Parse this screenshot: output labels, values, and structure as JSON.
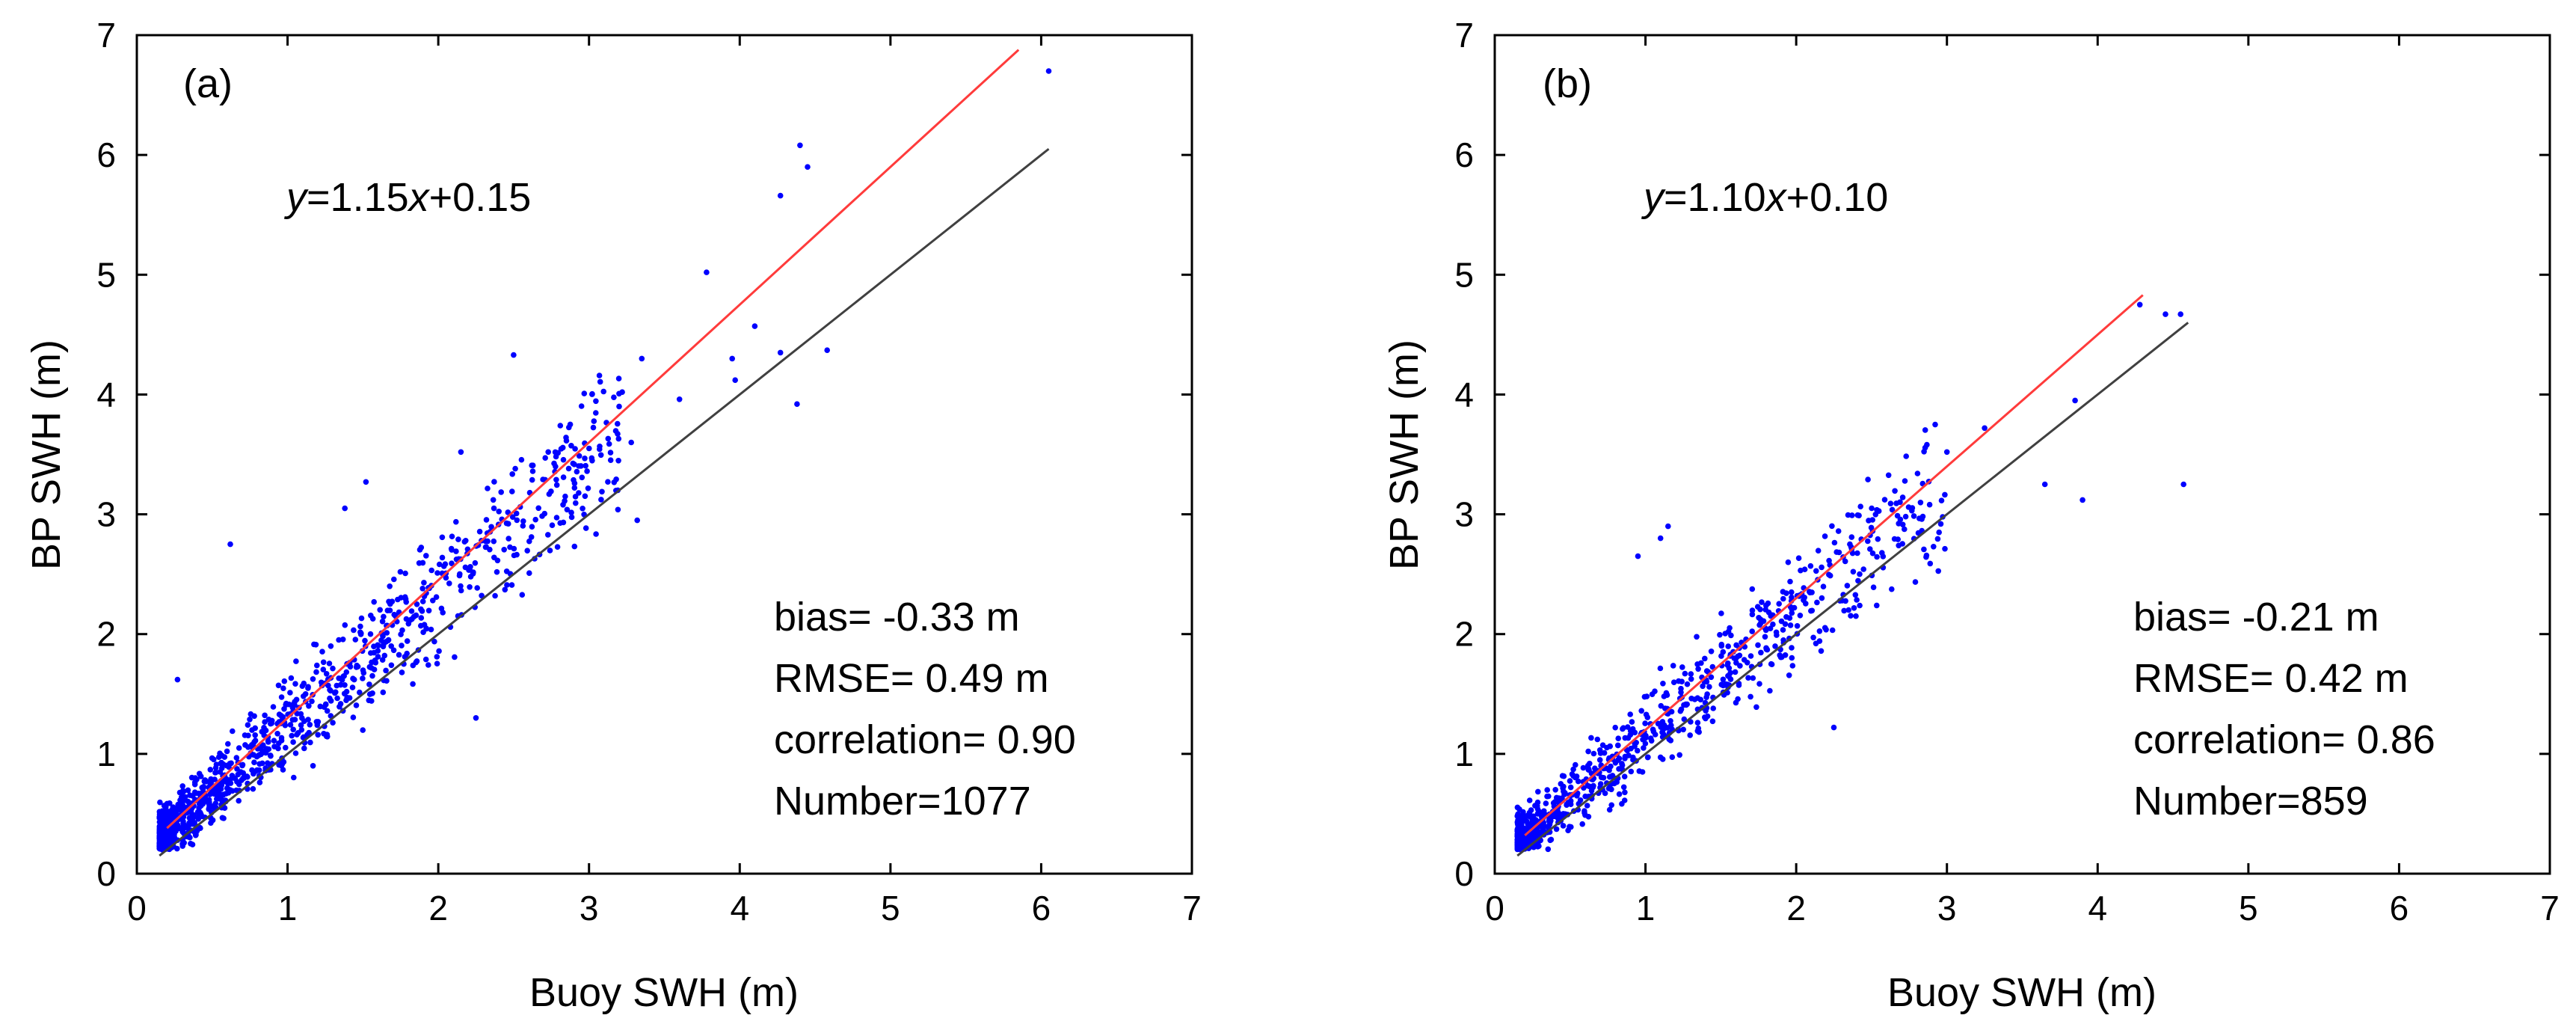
{
  "chart_data": [
    {
      "type": "scatter",
      "panel_label": "(a)",
      "xlabel": "Buoy SWH (m)",
      "ylabel": "BP SWH (m)",
      "xlim": [
        0,
        7
      ],
      "ylim": [
        0,
        7
      ],
      "xticks": [
        "0",
        "1",
        "2",
        "3",
        "4",
        "5",
        "6",
        "7"
      ],
      "yticks": [
        "0",
        "1",
        "2",
        "3",
        "4",
        "5",
        "6",
        "7"
      ],
      "equation": {
        "y": "y",
        "eq": "=1.15",
        "x": "x",
        "rest": "+0.15"
      },
      "stats": [
        "bias= -0.33 m",
        "RMSE= 0.49 m",
        "correlation= 0.90",
        "Number=1077"
      ],
      "fit": {
        "slope": 1.15,
        "intercept": 0.15,
        "x_range": [
          0.2,
          5.85
        ],
        "color": "#ff3b3b"
      },
      "reference_line": {
        "slope": 1.0,
        "intercept": 0.0,
        "x_range": [
          0.15,
          6.05
        ],
        "color": "#404040"
      },
      "point_color": "#0000ff",
      "seed": 11,
      "outliers": [
        [
          6.05,
          6.7
        ],
        [
          4.4,
          6.08
        ],
        [
          4.45,
          5.9
        ],
        [
          4.27,
          5.66
        ],
        [
          3.78,
          5.02
        ],
        [
          2.5,
          4.33
        ],
        [
          4.58,
          4.37
        ],
        [
          4.27,
          4.35
        ],
        [
          4.1,
          4.57
        ],
        [
          3.6,
          3.96
        ],
        [
          4.38,
          3.92
        ],
        [
          3.35,
          4.3
        ],
        [
          3.95,
          4.3
        ],
        [
          3.97,
          4.12
        ],
        [
          3.32,
          2.95
        ],
        [
          2.25,
          1.3
        ],
        [
          0.62,
          2.75
        ],
        [
          1.52,
          3.27
        ],
        [
          1.38,
          3.05
        ],
        [
          2.15,
          3.52
        ],
        [
          3.22,
          4.02
        ],
        [
          3.2,
          3.9
        ],
        [
          3.28,
          3.6
        ],
        [
          0.27,
          1.62
        ]
      ],
      "generator": {
        "count": 1053,
        "slope": 1.1,
        "intercept": 0.12,
        "spread": 0.3,
        "x_min": 0.15,
        "x_max": 3.2,
        "x_shape": 0.5
      }
    },
    {
      "type": "scatter",
      "panel_label": "(b)",
      "xlabel": "Buoy SWH (m)",
      "ylabel": "BP SWH (m)",
      "xlim": [
        0,
        7
      ],
      "ylim": [
        0,
        7
      ],
      "xticks": [
        "0",
        "1",
        "2",
        "3",
        "4",
        "5",
        "6",
        "7"
      ],
      "yticks": [
        "0",
        "1",
        "2",
        "3",
        "4",
        "5",
        "6",
        "7"
      ],
      "equation": {
        "y": "y",
        "eq": "=1.10",
        "x": "x",
        "rest": "+0.10"
      },
      "stats": [
        "bias= -0.21 m",
        "RMSE= 0.42 m",
        "correlation= 0.86",
        "Number=859"
      ],
      "fit": {
        "slope": 1.1,
        "intercept": 0.1,
        "x_range": [
          0.2,
          4.3
        ],
        "color": "#ff3b3b"
      },
      "reference_line": {
        "slope": 1.0,
        "intercept": 0.0,
        "x_range": [
          0.15,
          4.6
        ],
        "color": "#404040"
      },
      "point_color": "#0000ff",
      "seed": 23,
      "outliers": [
        [
          4.28,
          4.75
        ],
        [
          4.45,
          4.67
        ],
        [
          4.55,
          4.67
        ],
        [
          3.85,
          3.95
        ],
        [
          4.57,
          3.25
        ],
        [
          3.65,
          3.25
        ],
        [
          3.9,
          3.12
        ],
        [
          3.25,
          3.72
        ],
        [
          3.0,
          3.52
        ],
        [
          2.25,
          1.22
        ],
        [
          1.15,
          2.9
        ],
        [
          1.1,
          2.8
        ],
        [
          0.95,
          2.65
        ]
      ],
      "generator": {
        "count": 846,
        "slope": 1.05,
        "intercept": 0.1,
        "spread": 0.3,
        "x_min": 0.15,
        "x_max": 3.0,
        "x_shape": 0.45
      }
    }
  ]
}
